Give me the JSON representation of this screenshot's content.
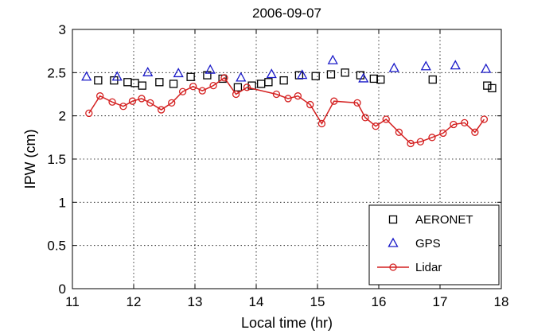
{
  "chart_data": {
    "type": "scatter",
    "title": "2006-09-07",
    "xlabel": "Local time (hr)",
    "ylabel": "IPW (cm)",
    "xlim": [
      11,
      18
    ],
    "ylim": [
      0,
      3
    ],
    "xticks": [
      "11",
      "12",
      "13",
      "14",
      "15",
      "16",
      "17",
      "18"
    ],
    "yticks": [
      "0",
      "0.5",
      "1",
      "1.5",
      "2",
      "2.5",
      "3"
    ],
    "grid": true,
    "legend_position": "bottom-right",
    "series": [
      {
        "name": "AERONET",
        "marker": "square",
        "color": "#000000",
        "line": false,
        "points": [
          [
            11.42,
            2.41
          ],
          [
            11.68,
            2.41
          ],
          [
            11.9,
            2.39
          ],
          [
            12.02,
            2.38
          ],
          [
            12.14,
            2.35
          ],
          [
            12.42,
            2.39
          ],
          [
            12.65,
            2.37
          ],
          [
            12.93,
            2.45
          ],
          [
            13.2,
            2.47
          ],
          [
            13.45,
            2.43
          ],
          [
            13.7,
            2.33
          ],
          [
            13.93,
            2.35
          ],
          [
            14.08,
            2.37
          ],
          [
            14.2,
            2.39
          ],
          [
            14.45,
            2.41
          ],
          [
            14.7,
            2.47
          ],
          [
            14.97,
            2.46
          ],
          [
            15.22,
            2.48
          ],
          [
            15.45,
            2.5
          ],
          [
            15.7,
            2.47
          ],
          [
            15.92,
            2.43
          ],
          [
            16.03,
            2.42
          ],
          [
            16.88,
            2.42
          ],
          [
            17.77,
            2.35
          ],
          [
            17.85,
            2.32
          ]
        ]
      },
      {
        "name": "GPS",
        "marker": "triangle",
        "color": "#1a1ac8",
        "line": false,
        "points": [
          [
            11.23,
            2.45
          ],
          [
            11.73,
            2.45
          ],
          [
            12.23,
            2.5
          ],
          [
            12.73,
            2.49
          ],
          [
            13.25,
            2.53
          ],
          [
            13.75,
            2.44
          ],
          [
            14.25,
            2.48
          ],
          [
            14.75,
            2.47
          ],
          [
            15.25,
            2.64
          ],
          [
            15.75,
            2.43
          ],
          [
            16.25,
            2.55
          ],
          [
            16.77,
            2.57
          ],
          [
            17.25,
            2.58
          ],
          [
            17.75,
            2.54
          ]
        ]
      },
      {
        "name": "Lidar",
        "marker": "circle",
        "color": "#d42020",
        "line": true,
        "points": [
          [
            11.27,
            2.03
          ],
          [
            11.45,
            2.23
          ],
          [
            11.65,
            2.16
          ],
          [
            11.83,
            2.11
          ],
          [
            11.98,
            2.17
          ],
          [
            12.13,
            2.2
          ],
          [
            12.27,
            2.15
          ],
          [
            12.45,
            2.07
          ],
          [
            12.62,
            2.15
          ],
          [
            12.8,
            2.28
          ],
          [
            12.97,
            2.34
          ],
          [
            13.12,
            2.29
          ],
          [
            13.3,
            2.35
          ],
          [
            13.48,
            2.44
          ],
          [
            13.67,
            2.25
          ],
          [
            13.85,
            2.33
          ],
          [
            14.33,
            2.25
          ],
          [
            14.52,
            2.2
          ],
          [
            14.68,
            2.23
          ],
          [
            14.88,
            2.13
          ],
          [
            15.07,
            1.91
          ],
          [
            15.27,
            2.17
          ],
          [
            15.65,
            2.15
          ],
          [
            15.78,
            1.98
          ],
          [
            15.95,
            1.88
          ],
          [
            16.12,
            1.96
          ],
          [
            16.33,
            1.81
          ],
          [
            16.52,
            1.68
          ],
          [
            16.68,
            1.7
          ],
          [
            16.87,
            1.75
          ],
          [
            17.05,
            1.8
          ],
          [
            17.22,
            1.9
          ],
          [
            17.4,
            1.92
          ],
          [
            17.57,
            1.81
          ],
          [
            17.72,
            1.96
          ]
        ]
      }
    ]
  }
}
